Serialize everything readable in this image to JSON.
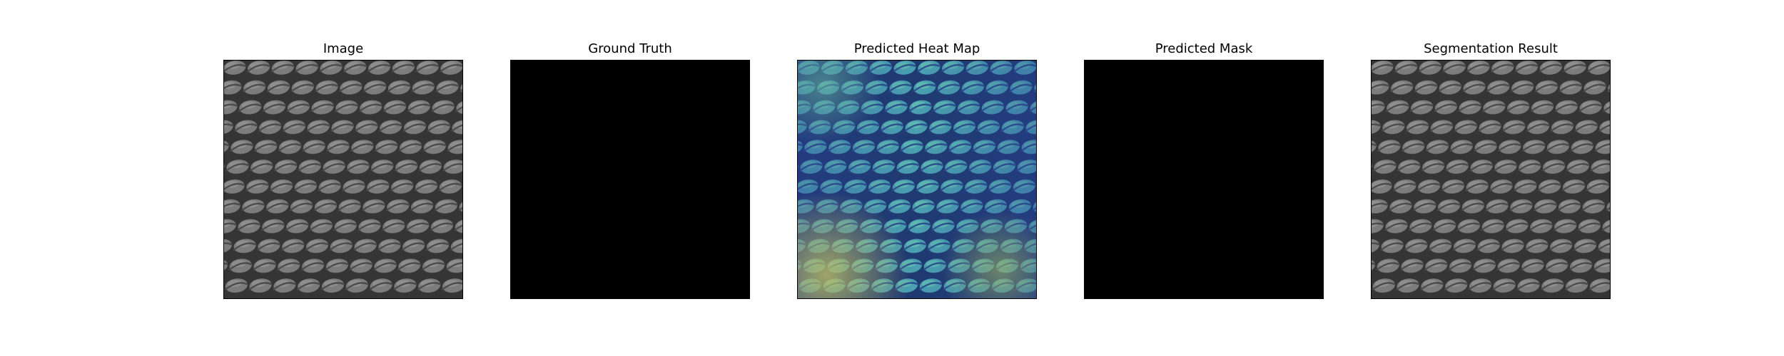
{
  "figure": {
    "panels": [
      {
        "title": "Image"
      },
      {
        "title": "Ground Truth"
      },
      {
        "title": "Predicted Heat Map"
      },
      {
        "title": "Predicted Mask"
      },
      {
        "title": "Segmentation Result"
      }
    ]
  },
  "colors": {
    "background": "#ffffff",
    "texture_dark": "#2b2b2b",
    "texture_light": "#8a8a8a",
    "mask_black": "#000000",
    "heat_blue": "#3b5fb0",
    "heat_teal": "#4cb0a8",
    "heat_yellow": "#c8c860"
  }
}
